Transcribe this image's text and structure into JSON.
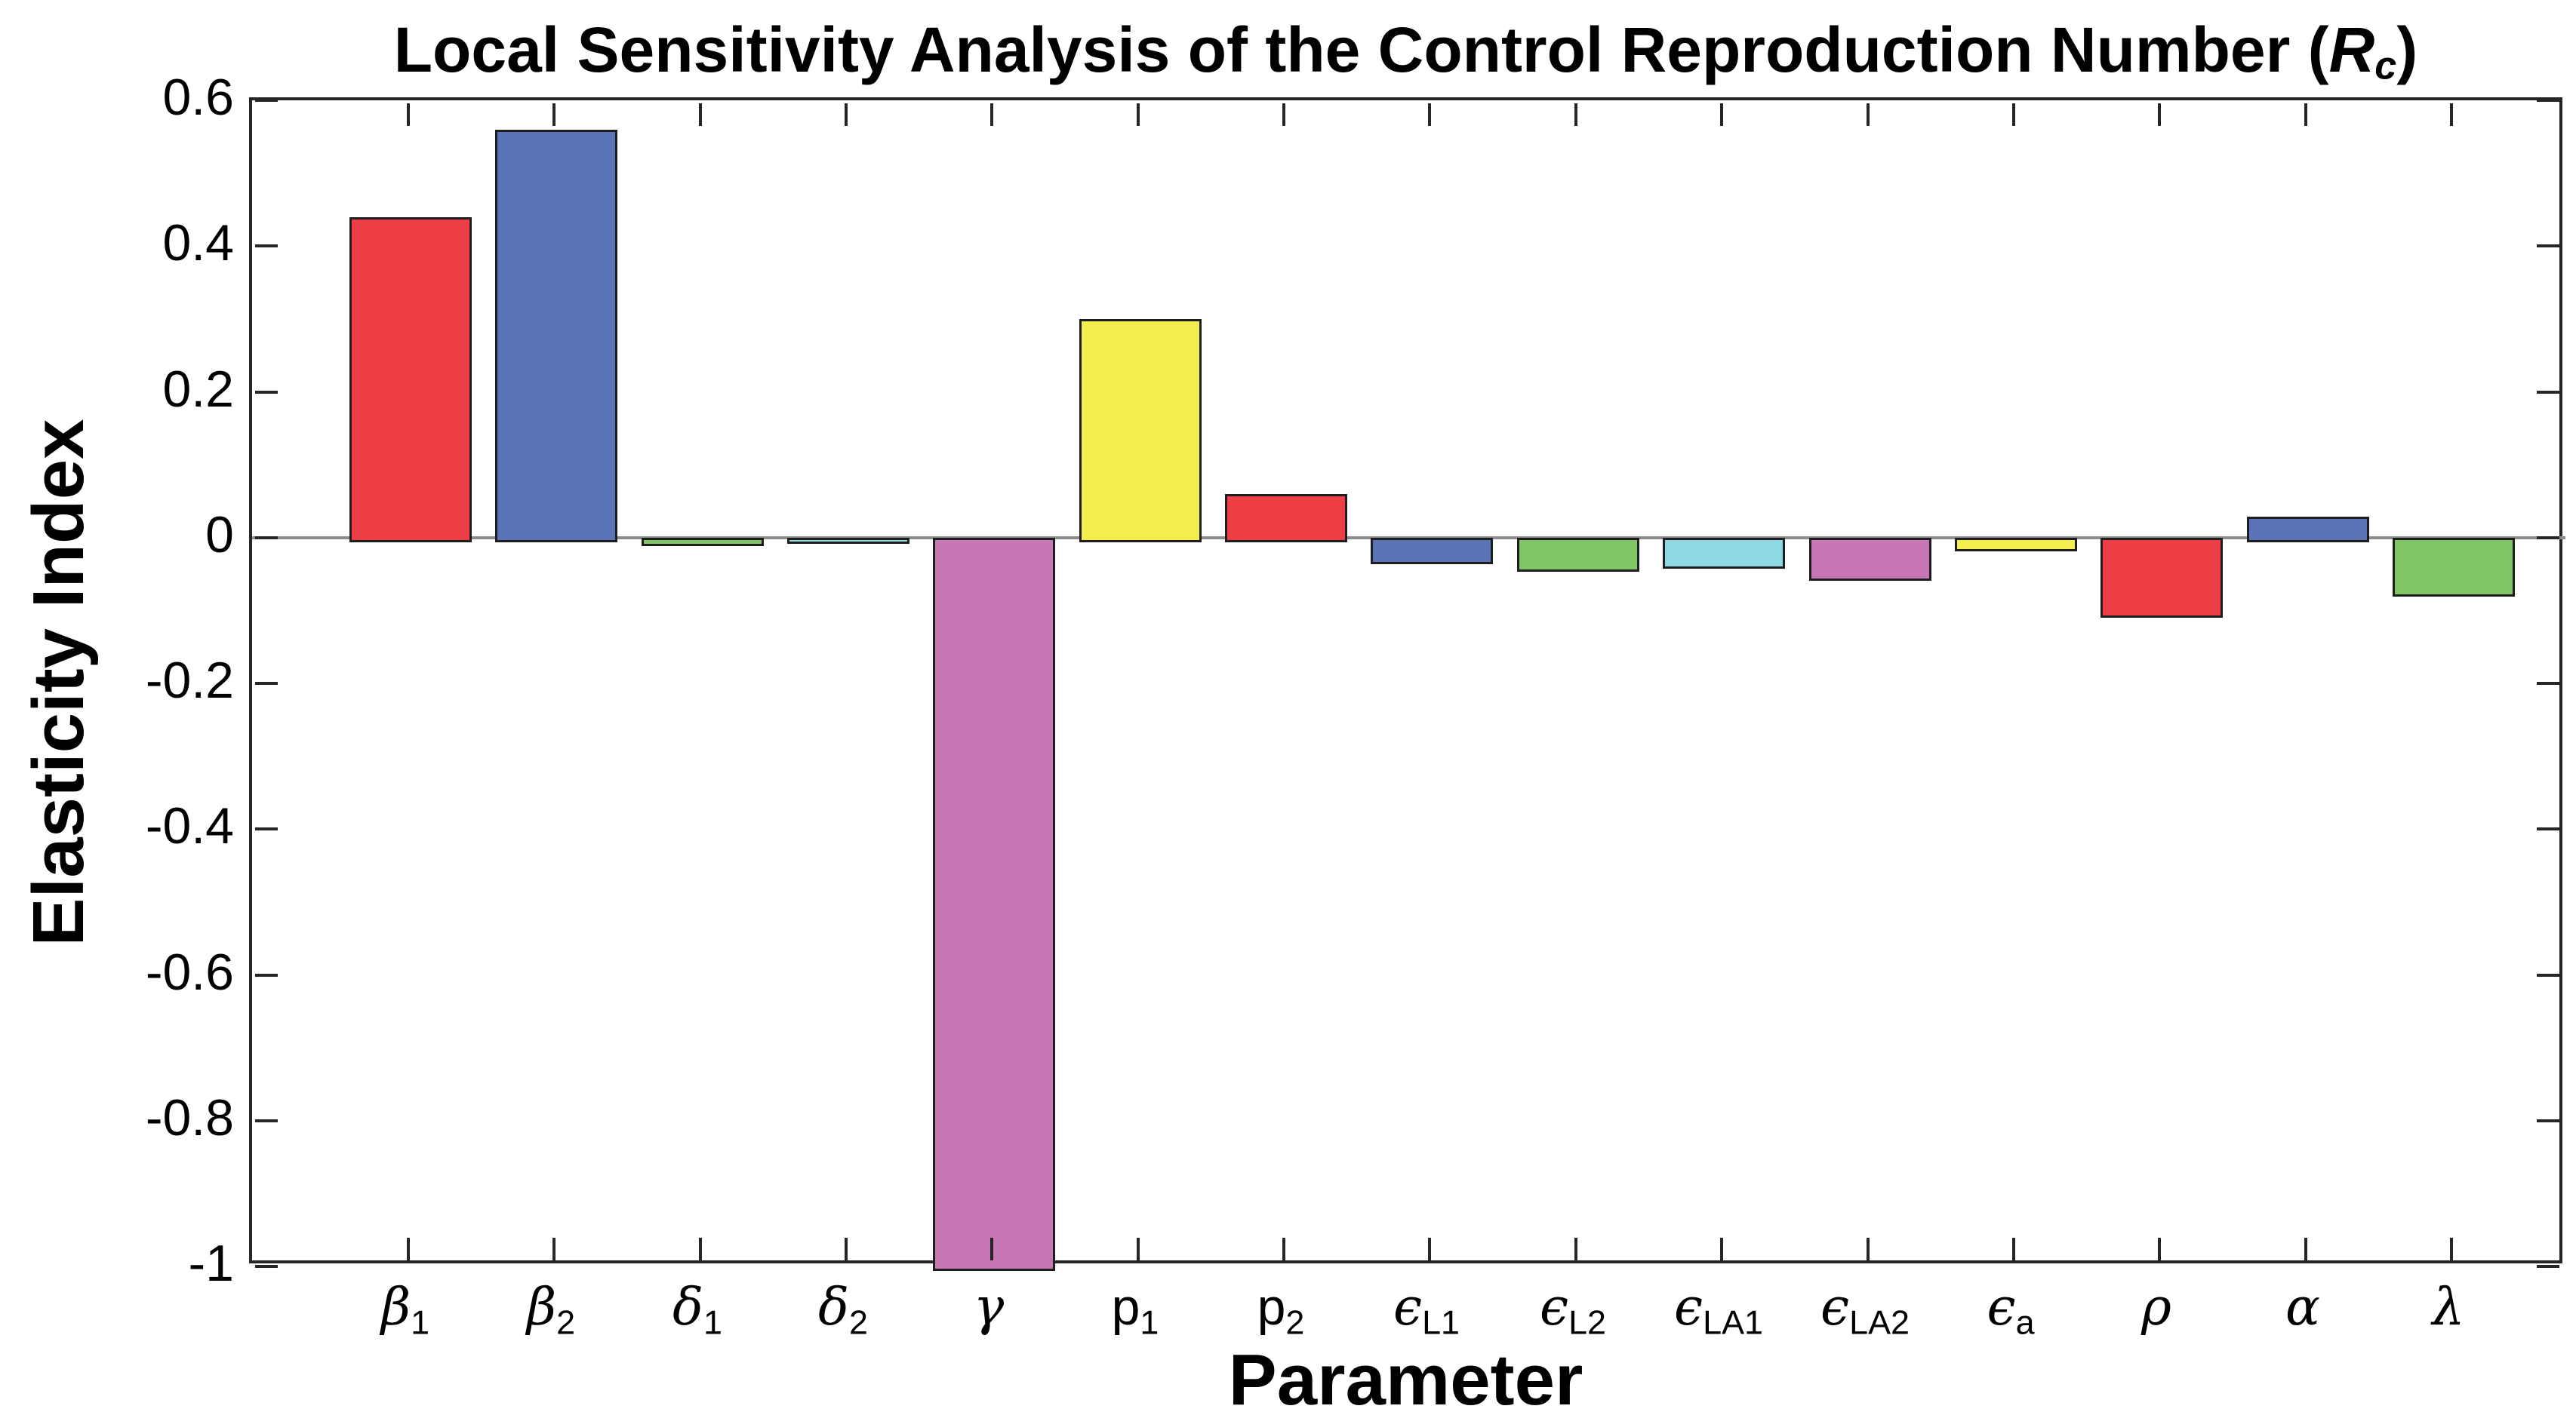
{
  "title": {
    "prefix": "Local Sensitivity Analysis of the Control Reproduction Number (",
    "r_base": "R",
    "r_sub": "c",
    "suffix": ")",
    "full_text": "Local Sensitivity Analysis of the Control Reproduction Number (Rc)"
  },
  "axes": {
    "y_label": "Elasticity Index",
    "x_label": "Parameter"
  },
  "chart_data": {
    "type": "bar",
    "title": "Local Sensitivity Analysis of the Control Reproduction Number (Rc)",
    "xlabel": "Parameter",
    "ylabel": "Elasticity Index",
    "ylim": [
      -1.0,
      0.6
    ],
    "grid": false,
    "legend": false,
    "y_tick_values": [
      0.6,
      0.4,
      0.2,
      0,
      -0.2,
      -0.4,
      -0.6,
      -0.8,
      -1
    ],
    "y_tick_labels": [
      "0.6",
      "0.4",
      "0.2",
      "0",
      "-0.2",
      "-0.4",
      "-0.6",
      "-0.8",
      "-1"
    ],
    "categories": [
      "β1",
      "β2",
      "δ1",
      "δ2",
      "γ",
      "p1",
      "p2",
      "ϵL1",
      "ϵL2",
      "ϵLA1",
      "ϵLA2",
      "ϵa",
      "ρ",
      "α",
      "λ"
    ],
    "category_label_parts": [
      {
        "base": "β",
        "sub": "1",
        "italic": true
      },
      {
        "base": "β",
        "sub": "2",
        "italic": true
      },
      {
        "base": "δ",
        "sub": "1",
        "italic": true
      },
      {
        "base": "δ",
        "sub": "2",
        "italic": true
      },
      {
        "base": "γ",
        "sub": "",
        "italic": true
      },
      {
        "base": "p",
        "sub": "1",
        "italic": false
      },
      {
        "base": "p",
        "sub": "2",
        "italic": false
      },
      {
        "base": "ϵ",
        "sub": "L1",
        "italic": true
      },
      {
        "base": "ϵ",
        "sub": "L2",
        "italic": true
      },
      {
        "base": "ϵ",
        "sub": "LA1",
        "italic": true
      },
      {
        "base": "ϵ",
        "sub": "LA2",
        "italic": true
      },
      {
        "base": "ϵ",
        "sub": "a",
        "italic": true
      },
      {
        "base": "ρ",
        "sub": "",
        "italic": true
      },
      {
        "base": "α",
        "sub": "",
        "italic": true
      },
      {
        "base": "λ",
        "sub": "",
        "italic": true
      }
    ],
    "values": [
      0.44,
      0.56,
      -0.005,
      -0.002,
      -1.0,
      0.3,
      0.06,
      -0.03,
      -0.04,
      -0.036,
      -0.053,
      -0.012,
      -0.103,
      0.029,
      -0.075
    ],
    "bar_colors": [
      "#ee3e46",
      "#5b74b8",
      "#82c566",
      "#8ed8e4",
      "#c777b4",
      "#f3ee4e",
      "#ee3e46",
      "#5b74b8",
      "#82c566",
      "#8ed8e4",
      "#c777b4",
      "#f3ee4e",
      "#ee3e46",
      "#5b74b8",
      "#82c566"
    ],
    "palette_cycle": [
      "#ee3e46",
      "#5b74b8",
      "#82c566",
      "#8ed8e4",
      "#c777b4",
      "#f3ee4e"
    ],
    "edge_color": "#1e1e1e",
    "zero_line_color": "#8c8c8c",
    "frame_color": "#262626"
  }
}
